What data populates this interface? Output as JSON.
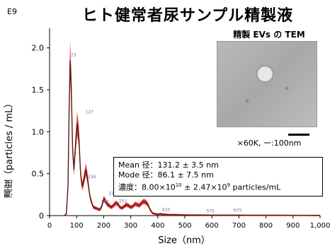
{
  "header": {
    "title": "ヒト健常者尿サンプル精製液",
    "exponent": "E9"
  },
  "inset": {
    "title": "精製 EVs の TEM",
    "caption": "×60K, ー:100nm"
  },
  "stats": {
    "mean": "Mean 径：131.2 ± 3.5 nm",
    "mode": "Mode 径：86.1 ± 7.5 nm",
    "conc_prefix": "濃度：8.00×10",
    "conc_exp1": "10",
    "conc_mid": " ± 2.47×10",
    "conc_exp2": "9",
    "conc_suffix": " particles/mL"
  },
  "chart_data": {
    "type": "line",
    "title": "ヒト健常者尿サンプル精製液",
    "xlabel": "Size（nm）",
    "ylabel": "濃度（particles / mL）",
    "xlim": [
      0,
      1000
    ],
    "ylim": [
      0,
      2.2
    ],
    "x_ticks": [
      0,
      100,
      200,
      300,
      400,
      500,
      600,
      700,
      800,
      900,
      1000
    ],
    "x_tick_labels": [
      "0",
      "100",
      "200",
      "300",
      "400",
      "500",
      "600",
      "700",
      "800",
      "900",
      "1,000"
    ],
    "y_ticks": [
      0,
      0.5,
      1.0,
      1.5,
      2.0
    ],
    "y_tick_labels": [
      "0",
      "0.5",
      "1.0",
      "1.5",
      "2.0"
    ],
    "grid": false,
    "legend": "none",
    "series": [
      {
        "color": "#5a1a10",
        "band_color": "#e02020",
        "x": [
          55,
          62,
          68,
          72,
          76,
          80,
          85,
          90,
          96,
          102,
          108,
          114,
          118,
          122,
          128,
          134,
          140,
          146,
          150,
          156,
          162,
          170,
          178,
          186,
          194,
          200,
          206,
          212,
          220,
          228,
          236,
          244,
          252,
          260,
          268,
          276,
          284,
          292,
          300,
          308,
          316,
          324,
          332,
          340,
          348,
          356,
          364,
          372,
          380,
          390,
          400,
          410,
          420,
          440,
          460,
          480,
          500,
          520,
          540,
          560,
          580,
          600,
          650,
          700,
          750,
          800,
          850,
          900,
          950,
          1000
        ],
        "y": [
          0,
          0.02,
          0.35,
          1.2,
          1.85,
          1.55,
          0.8,
          0.55,
          0.85,
          1.1,
          0.95,
          0.55,
          0.4,
          0.35,
          0.45,
          0.55,
          0.45,
          0.3,
          0.22,
          0.15,
          0.1,
          0.09,
          0.08,
          0.07,
          0.12,
          0.2,
          0.18,
          0.14,
          0.12,
          0.1,
          0.12,
          0.15,
          0.14,
          0.1,
          0.09,
          0.11,
          0.13,
          0.12,
          0.1,
          0.11,
          0.14,
          0.13,
          0.12,
          0.15,
          0.17,
          0.16,
          0.13,
          0.07,
          0.03,
          0.02,
          0.015,
          0.02,
          0.015,
          0.01,
          0.01,
          0.008,
          0.006,
          0.005,
          0.005,
          0.004,
          0.004,
          0.003,
          0.003,
          0.003,
          0.002,
          0.002,
          0.002,
          0.001,
          0.001,
          0.0
        ]
      }
    ],
    "annotations": [
      {
        "text": "73",
        "x": 73,
        "y": 1.88
      },
      {
        "text": "127",
        "x": 127,
        "y": 1.2
      },
      {
        "text": "136",
        "x": 136,
        "y": 0.43
      },
      {
        "text": "184",
        "x": 184,
        "y": 0.13
      },
      {
        "text": "213",
        "x": 213,
        "y": 0.23
      },
      {
        "text": "251",
        "x": 251,
        "y": 0.14
      },
      {
        "text": "410",
        "x": 410,
        "y": 0.04
      },
      {
        "text": "575",
        "x": 575,
        "y": 0.02
      },
      {
        "text": "675",
        "x": 675,
        "y": 0.03
      }
    ]
  }
}
